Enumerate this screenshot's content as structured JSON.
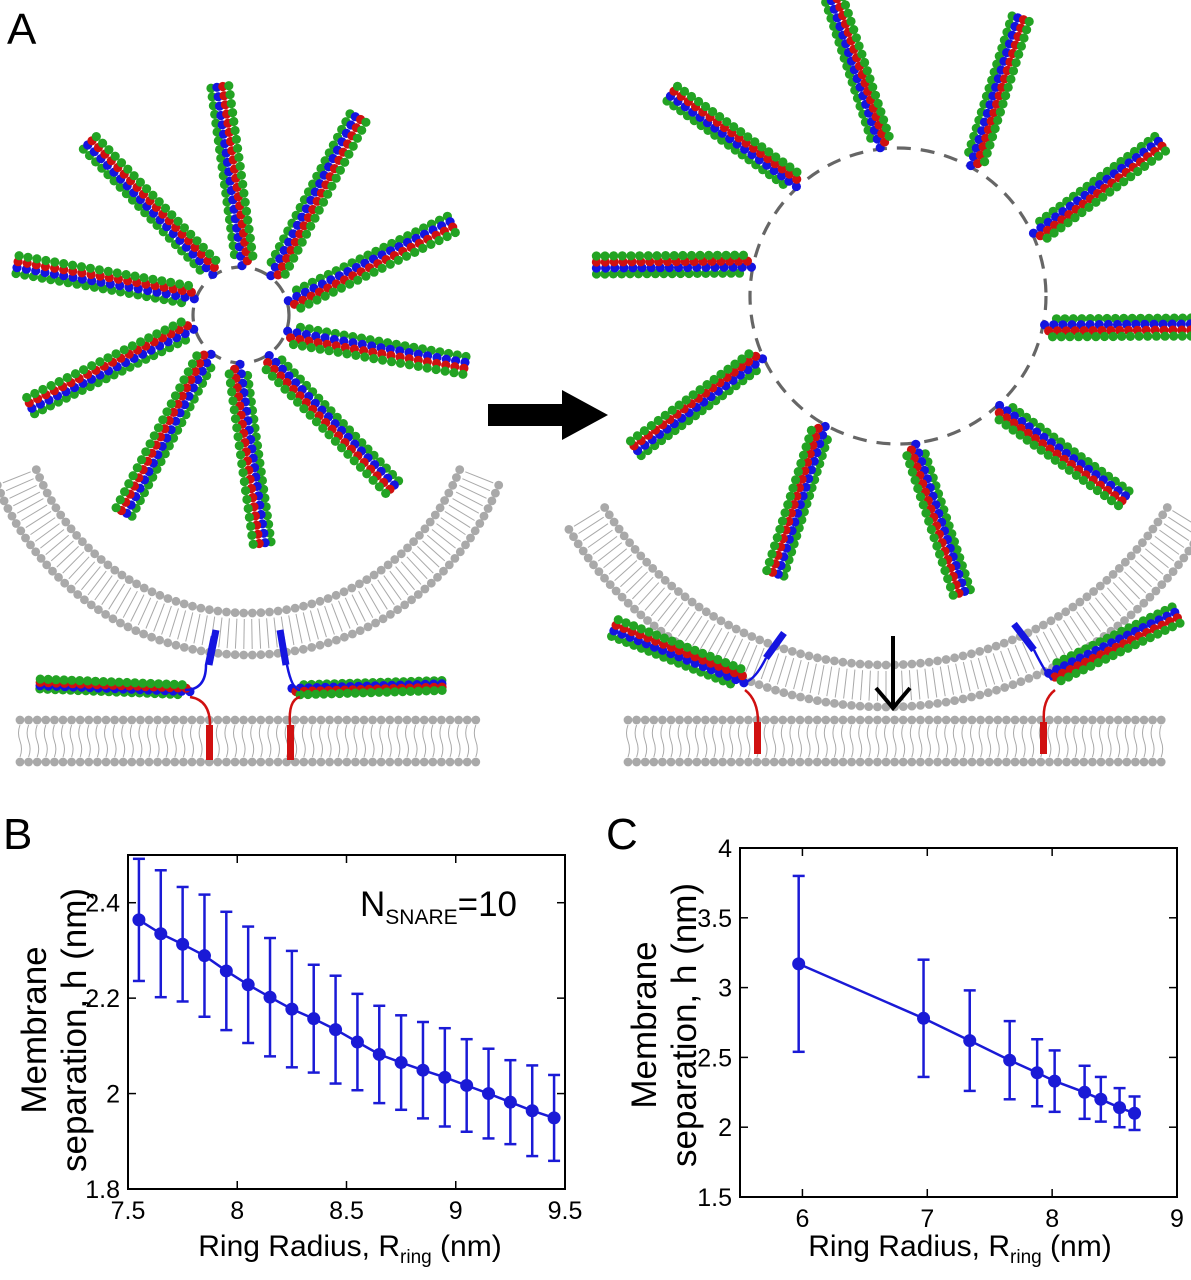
{
  "figure": {
    "panels": {
      "a": "A",
      "b": "B",
      "c": "C"
    }
  },
  "chart_data": [
    {
      "type": "line",
      "panel": "B",
      "xlabel_main": "Ring Radius, R",
      "xlabel_sub": "ring",
      "xlabel_unit": " (nm)",
      "ylabel_line1": "Membrane",
      "ylabel_line2": "separation, h (nm)",
      "annotation_main": "N",
      "annotation_sub": "SNARE",
      "annotation_value": "=10",
      "xlim": [
        7.5,
        9.5
      ],
      "ylim": [
        1.8,
        2.5
      ],
      "xticks": [
        7.5,
        8,
        8.5,
        9,
        9.5
      ],
      "xtick_labels": [
        "7.5",
        "8",
        "8.5",
        "9",
        "9.5"
      ],
      "yticks": [
        1.8,
        2.0,
        2.2,
        2.4
      ],
      "ytick_labels": [
        "1.8",
        "2",
        "2.2",
        "2.4"
      ],
      "color": "#1a1ad6",
      "x": [
        7.55,
        7.65,
        7.75,
        7.85,
        7.95,
        8.05,
        8.15,
        8.25,
        8.35,
        8.45,
        8.55,
        8.65,
        8.75,
        8.85,
        8.95,
        9.05,
        9.15,
        9.25,
        9.35,
        9.45
      ],
      "y": [
        2.364,
        2.335,
        2.313,
        2.289,
        2.257,
        2.228,
        2.202,
        2.177,
        2.157,
        2.134,
        2.108,
        2.082,
        2.065,
        2.049,
        2.034,
        2.017,
        2.0,
        1.982,
        1.964,
        1.949
      ],
      "err": [
        0.128,
        0.133,
        0.12,
        0.128,
        0.124,
        0.122,
        0.124,
        0.122,
        0.113,
        0.113,
        0.101,
        0.102,
        0.099,
        0.101,
        0.103,
        0.097,
        0.094,
        0.088,
        0.095,
        0.09
      ]
    },
    {
      "type": "line",
      "panel": "C",
      "xlabel_main": "Ring Radius, R",
      "xlabel_sub": "ring",
      "xlabel_unit": " (nm)",
      "ylabel_line1": "Membrane",
      "ylabel_line2": "separation, h (nm)",
      "xlim": [
        5.5,
        9
      ],
      "ylim": [
        1.5,
        4
      ],
      "xticks": [
        6,
        7,
        8,
        9
      ],
      "xtick_labels": [
        "6",
        "7",
        "8",
        "9"
      ],
      "yticks": [
        1.5,
        2,
        2.5,
        3,
        3.5,
        4
      ],
      "ytick_labels": [
        "1.5",
        "2",
        "2.5",
        "3",
        "3.5",
        "4"
      ],
      "color": "#1a1ad6",
      "x": [
        5.97,
        6.97,
        7.34,
        7.66,
        7.88,
        8.02,
        8.26,
        8.39,
        8.54,
        8.66
      ],
      "y": [
        3.17,
        2.78,
        2.62,
        2.48,
        2.39,
        2.33,
        2.25,
        2.2,
        2.14,
        2.1
      ],
      "err": [
        0.63,
        0.42,
        0.36,
        0.28,
        0.24,
        0.22,
        0.19,
        0.16,
        0.14,
        0.12
      ]
    }
  ]
}
